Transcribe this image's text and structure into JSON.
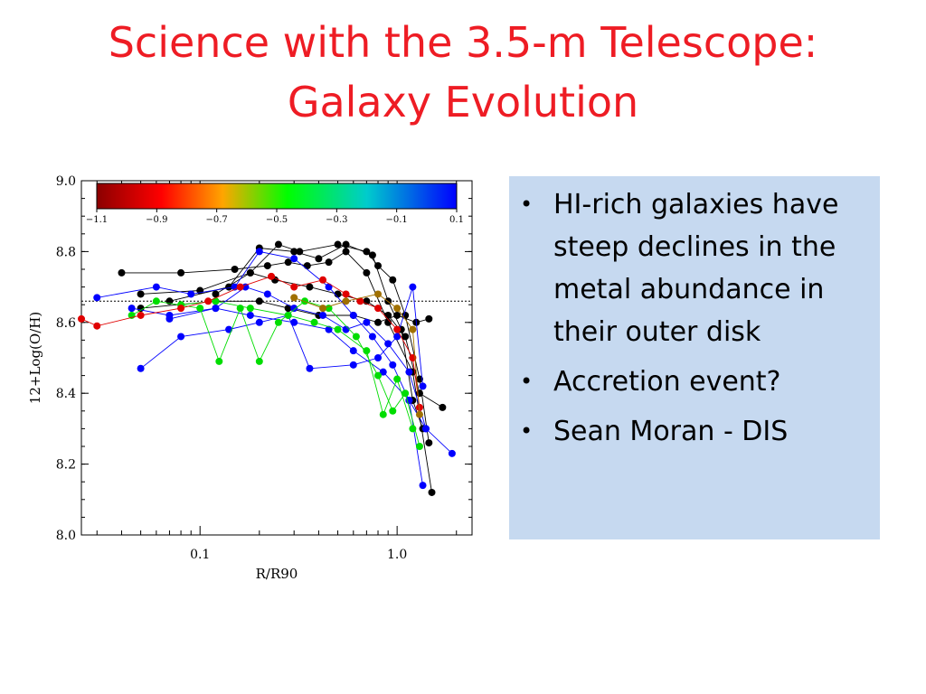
{
  "slide": {
    "title_line1": "Science with the 3.5-m Telescope:",
    "title_line2": "Galaxy Evolution",
    "bullets": [
      "HI-rich galaxies have steep declines in the metal abundance in their outer disk",
      "Accretion event?",
      "Sean Moran - DIS"
    ],
    "title_color": "#ee1c24",
    "panel_color": "#c6d9f0"
  },
  "chart_data": {
    "type": "line",
    "xlabel": "R/R90",
    "ylabel": "12+Log(O/H)",
    "x_scale": "log",
    "xlim": [
      0.025,
      2.4
    ],
    "ylim": [
      8.0,
      9.0
    ],
    "x_ticks": [
      "0.1",
      "1.0"
    ],
    "y_ticks": [
      "8.0",
      "8.2",
      "8.4",
      "8.6",
      "8.8",
      "9.0"
    ],
    "reference_line_y": 8.66,
    "colorbar": {
      "ticks": [
        "-1.1",
        "-0.9",
        "-0.7",
        "-0.5",
        "-0.3",
        "-0.1",
        "0.1"
      ],
      "colors": [
        "#8b0000",
        "#ff0000",
        "#ffa500",
        "#00ff00",
        "#00cccc",
        "#0000ff"
      ]
    },
    "series": [
      {
        "color": "#000000",
        "points": [
          [
            0.04,
            8.74
          ],
          [
            0.08,
            8.74
          ],
          [
            0.15,
            8.75
          ],
          [
            0.22,
            8.76
          ],
          [
            0.28,
            8.77
          ],
          [
            0.35,
            8.76
          ],
          [
            0.45,
            8.77
          ],
          [
            0.55,
            8.8
          ],
          [
            0.7,
            8.74
          ],
          [
            0.9,
            8.6
          ],
          [
            1.2,
            8.46
          ],
          [
            1.5,
            8.12
          ]
        ]
      },
      {
        "color": "#000000",
        "points": [
          [
            0.05,
            8.68
          ],
          [
            0.1,
            8.69
          ],
          [
            0.18,
            8.74
          ],
          [
            0.25,
            8.82
          ],
          [
            0.32,
            8.8
          ],
          [
            0.5,
            8.82
          ],
          [
            0.7,
            8.8
          ],
          [
            0.8,
            8.76
          ],
          [
            0.95,
            8.72
          ],
          [
            1.1,
            8.62
          ],
          [
            1.3,
            8.44
          ],
          [
            1.45,
            8.26
          ]
        ]
      },
      {
        "color": "#000000",
        "points": [
          [
            0.07,
            8.66
          ],
          [
            0.14,
            8.7
          ],
          [
            0.2,
            8.81
          ],
          [
            0.3,
            8.8
          ],
          [
            0.4,
            8.78
          ],
          [
            0.55,
            8.82
          ],
          [
            0.75,
            8.79
          ],
          [
            0.9,
            8.66
          ],
          [
            1.05,
            8.58
          ],
          [
            1.2,
            8.38
          ],
          [
            1.35,
            8.3
          ]
        ]
      },
      {
        "color": "#000000",
        "points": [
          [
            0.05,
            8.64
          ],
          [
            0.12,
            8.66
          ],
          [
            0.2,
            8.66
          ],
          [
            0.28,
            8.64
          ],
          [
            0.4,
            8.62
          ],
          [
            0.6,
            8.62
          ],
          [
            0.8,
            8.6
          ],
          [
            1.0,
            8.62
          ],
          [
            1.25,
            8.6
          ],
          [
            1.45,
            8.61
          ]
        ]
      },
      {
        "color": "#000000",
        "points": [
          [
            0.12,
            8.68
          ],
          [
            0.18,
            8.74
          ],
          [
            0.24,
            8.72
          ],
          [
            0.36,
            8.7
          ],
          [
            0.5,
            8.68
          ],
          [
            0.7,
            8.66
          ],
          [
            0.9,
            8.62
          ],
          [
            1.1,
            8.56
          ],
          [
            1.3,
            8.4
          ],
          [
            1.7,
            8.36
          ]
        ]
      },
      {
        "color": "#0000ff",
        "points": [
          [
            0.03,
            8.67
          ],
          [
            0.06,
            8.7
          ],
          [
            0.09,
            8.68
          ],
          [
            0.15,
            8.7
          ],
          [
            0.2,
            8.8
          ],
          [
            0.3,
            8.78
          ],
          [
            0.45,
            8.7
          ],
          [
            0.6,
            8.62
          ],
          [
            0.75,
            8.56
          ],
          [
            0.95,
            8.48
          ],
          [
            1.15,
            8.38
          ],
          [
            1.35,
            8.14
          ]
        ]
      },
      {
        "color": "#0000ff",
        "points": [
          [
            0.045,
            8.64
          ],
          [
            0.07,
            8.62
          ],
          [
            0.12,
            8.64
          ],
          [
            0.18,
            8.62
          ],
          [
            0.3,
            8.6
          ],
          [
            0.45,
            8.58
          ],
          [
            0.6,
            8.52
          ],
          [
            0.85,
            8.46
          ],
          [
            1.15,
            8.38
          ],
          [
            1.4,
            8.3
          ],
          [
            1.9,
            8.23
          ]
        ]
      },
      {
        "color": "#0000ff",
        "points": [
          [
            0.05,
            8.47
          ],
          [
            0.08,
            8.56
          ],
          [
            0.14,
            8.58
          ],
          [
            0.2,
            8.6
          ],
          [
            0.28,
            8.62
          ],
          [
            0.36,
            8.47
          ],
          [
            0.6,
            8.48
          ],
          [
            0.8,
            8.5
          ],
          [
            1.0,
            8.56
          ],
          [
            1.2,
            8.7
          ],
          [
            1.35,
            8.42
          ]
        ]
      },
      {
        "color": "#0000ff",
        "points": [
          [
            0.07,
            8.61
          ],
          [
            0.12,
            8.64
          ],
          [
            0.17,
            8.7
          ],
          [
            0.22,
            8.68
          ],
          [
            0.3,
            8.64
          ],
          [
            0.42,
            8.62
          ],
          [
            0.55,
            8.58
          ],
          [
            0.7,
            8.6
          ],
          [
            0.9,
            8.54
          ],
          [
            1.15,
            8.46
          ],
          [
            1.4,
            8.3
          ]
        ]
      },
      {
        "color": "#00dd00",
        "points": [
          [
            0.045,
            8.62
          ],
          [
            0.06,
            8.66
          ],
          [
            0.1,
            8.64
          ],
          [
            0.125,
            8.49
          ],
          [
            0.16,
            8.64
          ],
          [
            0.2,
            8.49
          ],
          [
            0.25,
            8.6
          ],
          [
            0.34,
            8.66
          ],
          [
            0.45,
            8.64
          ],
          [
            0.62,
            8.56
          ],
          [
            0.8,
            8.45
          ],
          [
            0.95,
            8.35
          ],
          [
            1.1,
            8.4
          ],
          [
            1.3,
            8.25
          ]
        ]
      },
      {
        "color": "#00dd00",
        "points": [
          [
            0.08,
            8.65
          ],
          [
            0.12,
            8.66
          ],
          [
            0.18,
            8.64
          ],
          [
            0.28,
            8.62
          ],
          [
            0.38,
            8.6
          ],
          [
            0.5,
            8.58
          ],
          [
            0.7,
            8.52
          ],
          [
            0.85,
            8.34
          ],
          [
            1.0,
            8.44
          ],
          [
            1.2,
            8.3
          ]
        ]
      },
      {
        "color": "#e00000",
        "points": [
          [
            0.025,
            8.61
          ],
          [
            0.03,
            8.59
          ],
          [
            0.05,
            8.62
          ],
          [
            0.08,
            8.64
          ],
          [
            0.11,
            8.66
          ],
          [
            0.16,
            8.7
          ],
          [
            0.23,
            8.73
          ],
          [
            0.3,
            8.7
          ],
          [
            0.42,
            8.72
          ],
          [
            0.55,
            8.68
          ],
          [
            0.65,
            8.66
          ],
          [
            0.8,
            8.64
          ],
          [
            1.0,
            8.58
          ],
          [
            1.2,
            8.5
          ],
          [
            1.3,
            8.36
          ]
        ]
      },
      {
        "color": "#a07000",
        "points": [
          [
            0.3,
            8.67
          ],
          [
            0.42,
            8.64
          ],
          [
            0.55,
            8.66
          ],
          [
            0.8,
            8.68
          ],
          [
            1.0,
            8.64
          ],
          [
            1.2,
            8.58
          ],
          [
            1.3,
            8.34
          ]
        ]
      }
    ]
  }
}
